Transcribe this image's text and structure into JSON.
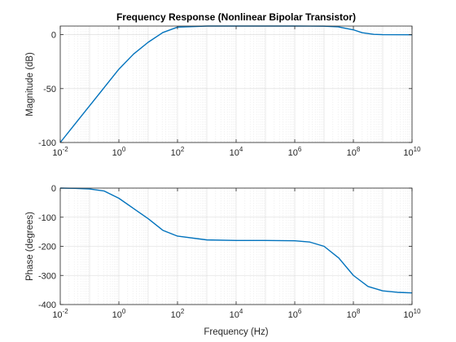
{
  "figure": {
    "title": "Frequency Response (Nonlinear Bipolar Transistor)",
    "line_color": "#0072BD"
  },
  "chart_data": [
    {
      "type": "line",
      "title": "Frequency Response (Nonlinear Bipolar Transistor)",
      "xlabel": "",
      "ylabel": "Magnitude (dB)",
      "xscale": "log",
      "xlim": [
        0.01,
        10000000000
      ],
      "ylim": [
        -100,
        8
      ],
      "yticks": [
        0,
        -50,
        -100
      ],
      "xticks": [
        {
          "base": "10",
          "exp": "-2"
        },
        {
          "base": "10",
          "exp": "0"
        },
        {
          "base": "10",
          "exp": "2"
        },
        {
          "base": "10",
          "exp": "4"
        },
        {
          "base": "10",
          "exp": "6"
        },
        {
          "base": "10",
          "exp": "8"
        },
        {
          "base": "10",
          "exp": "10"
        }
      ],
      "grid": true,
      "x": [
        0.01,
        0.0316,
        0.1,
        0.316,
        1,
        3.16,
        10,
        31.6,
        100,
        1000,
        10000,
        100000,
        1000000,
        10000000,
        30000000,
        100000000,
        200000000,
        500000000,
        1000000000,
        10000000000
      ],
      "series": [
        {
          "values": [
            -100,
            -83,
            -66,
            -49,
            -32,
            -18,
            -7,
            2,
            7,
            8,
            8,
            8,
            8,
            7.9,
            7.3,
            4.5,
            1.8,
            0.3,
            0,
            -0.1
          ]
        }
      ]
    },
    {
      "type": "line",
      "title": "",
      "xlabel": "Frequency (Hz)",
      "ylabel": "Phase (degrees)",
      "xscale": "log",
      "xlim": [
        0.01,
        10000000000
      ],
      "ylim": [
        -400,
        0
      ],
      "yticks": [
        0,
        -100,
        -200,
        -300,
        -400
      ],
      "xticks": [
        {
          "base": "10",
          "exp": "-2"
        },
        {
          "base": "10",
          "exp": "0"
        },
        {
          "base": "10",
          "exp": "2"
        },
        {
          "base": "10",
          "exp": "4"
        },
        {
          "base": "10",
          "exp": "6"
        },
        {
          "base": "10",
          "exp": "8"
        },
        {
          "base": "10",
          "exp": "10"
        }
      ],
      "grid": true,
      "x": [
        0.01,
        0.0316,
        0.1,
        0.316,
        1,
        3.16,
        10,
        31.6,
        100,
        1000,
        10000,
        100000,
        1000000,
        3160000,
        10000000,
        31600000,
        100000000,
        316000000,
        1000000000,
        3160000000,
        10000000000
      ],
      "series": [
        {
          "values": [
            0,
            -1,
            -3,
            -10,
            -35,
            -70,
            -105,
            -145,
            -165,
            -178,
            -180,
            -180,
            -181,
            -185,
            -200,
            -240,
            -300,
            -338,
            -353,
            -358,
            -360
          ]
        }
      ]
    }
  ]
}
